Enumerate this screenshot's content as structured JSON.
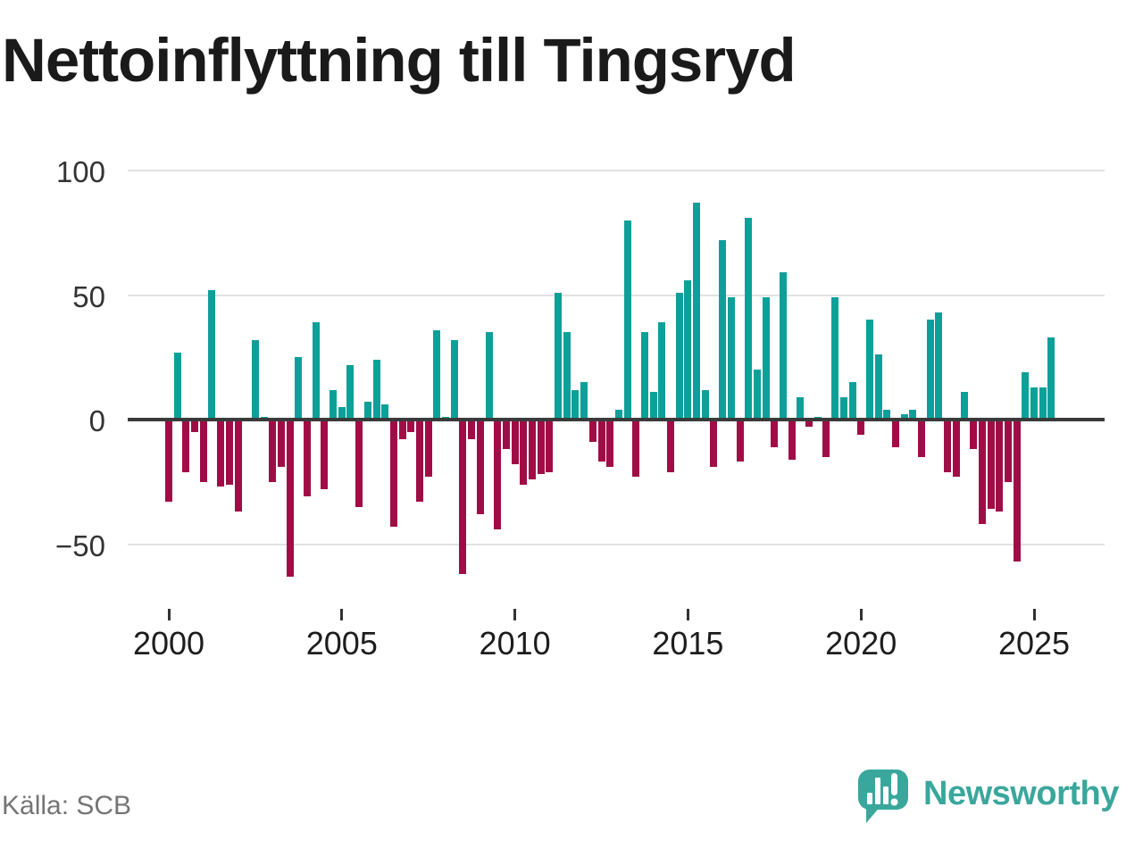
{
  "title": "Nettoinflyttning till Tingsryd",
  "source": "Källa: SCB",
  "logo": {
    "text": "Newsworthy",
    "icon": "bar-chart-speech-bubble-icon"
  },
  "colors": {
    "positive_bar": "#0DA099",
    "negative_bar": "#A00D46",
    "logo_teal": "#3AA79C",
    "axis_line": "#3a3a3a",
    "gridline": "#e2e2e2"
  },
  "chart_data": {
    "type": "bar",
    "title": "Nettoinflyttning till Tingsryd",
    "xlabel": "",
    "ylabel": "",
    "frequency": "quarterly",
    "x_start": "2000-Q1",
    "x_end": "2025-Q3",
    "grid": "horizontal",
    "ylim": [
      -70,
      105
    ],
    "y_ticks": [
      {
        "value": 100,
        "label": "100"
      },
      {
        "value": 50,
        "label": "50"
      },
      {
        "value": 0,
        "label": "0"
      },
      {
        "value": -50,
        "label": "−50"
      }
    ],
    "x_tick_labels": [
      "2000",
      "2005",
      "2010",
      "2015",
      "2020",
      "2025"
    ],
    "series": [
      {
        "name": "Nettoinflyttning",
        "values": [
          -33,
          27,
          -21,
          -5,
          -25,
          52,
          -27,
          -26,
          -37,
          0,
          32,
          1,
          -25,
          -19,
          -63,
          25,
          -31,
          39,
          -28,
          12,
          5,
          22,
          -35,
          7,
          24,
          6,
          -43,
          -8,
          -5,
          -33,
          -23,
          36,
          1,
          32,
          -62,
          -8,
          -38,
          35,
          -44,
          -12,
          -18,
          -26,
          -24,
          -22,
          -21,
          51,
          35,
          12,
          15,
          -9,
          -17,
          -19,
          4,
          80,
          -23,
          35,
          11,
          39,
          -21,
          51,
          56,
          87,
          12,
          -19,
          72,
          49,
          -17,
          81,
          20,
          49,
          -11,
          59,
          -16,
          9,
          -3,
          1,
          -15,
          49,
          9,
          15,
          -6,
          40,
          26,
          4,
          -11,
          2,
          4,
          -15,
          40,
          43,
          -21,
          -23,
          11,
          -12,
          -42,
          -36,
          -37,
          -25,
          -57,
          19,
          13,
          13,
          33
        ]
      }
    ]
  }
}
